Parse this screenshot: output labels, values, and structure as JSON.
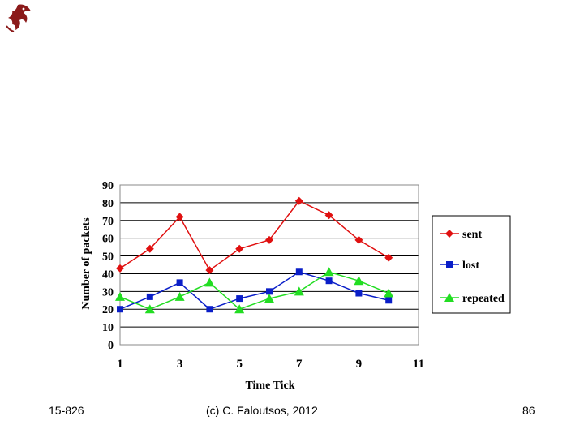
{
  "chart_data": {
    "type": "line",
    "x": [
      1,
      2,
      3,
      4,
      5,
      6,
      7,
      8,
      9,
      10
    ],
    "series": [
      {
        "name": "sent",
        "color": "#e01010",
        "marker": "diamond",
        "values": [
          43,
          54,
          72,
          42,
          54,
          59,
          81,
          73,
          59,
          49
        ]
      },
      {
        "name": "lost",
        "color": "#0a1ec8",
        "marker": "square",
        "values": [
          20,
          27,
          35,
          20,
          26,
          30,
          41,
          36,
          29,
          25
        ]
      },
      {
        "name": "repeated",
        "color": "#22dd22",
        "marker": "triangle",
        "values": [
          27,
          20,
          27,
          35,
          20,
          26,
          30,
          41,
          36,
          29
        ]
      }
    ],
    "xlabel": "Time Tick",
    "ylabel": "Number of packets",
    "xlim": [
      1,
      11
    ],
    "ylim": [
      0,
      90
    ],
    "xticks": [
      1,
      3,
      5,
      7,
      9,
      11
    ],
    "yticks": [
      0,
      10,
      20,
      30,
      40,
      50,
      60,
      70,
      80,
      90
    ],
    "legend_labels": [
      "sent",
      "lost",
      "repeated"
    ],
    "grid": "horizontal",
    "legend_position": "right"
  },
  "footer": {
    "course": "15-826",
    "copyright": "(c) C. Faloutsos, 2012",
    "page": "86"
  }
}
